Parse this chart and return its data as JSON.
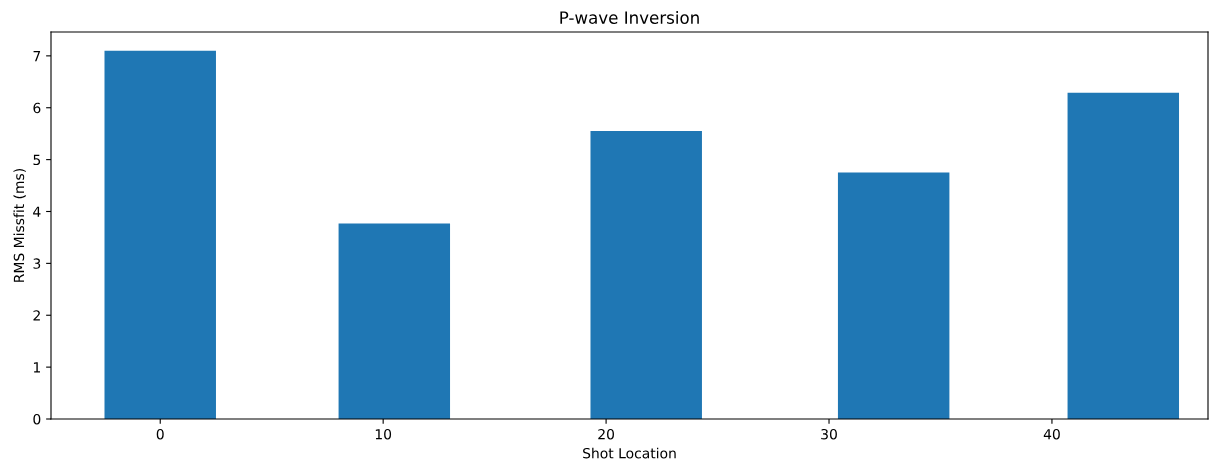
{
  "chart_data": {
    "type": "bar",
    "title": "P-wave Inversion",
    "xlabel": "Shot Location",
    "ylabel": "RMS Missfit (ms)",
    "x": [
      0,
      10.5,
      21.8,
      32.9,
      43.2
    ],
    "values": [
      7.1,
      3.77,
      5.55,
      4.75,
      6.29
    ],
    "color": "#1f77b4",
    "xlim": [
      -4.9,
      47.0
    ],
    "xticks": [
      0,
      10,
      20,
      30,
      40
    ],
    "ylim": [
      0,
      7.46
    ],
    "yticks": [
      0,
      1,
      2,
      3,
      4,
      5,
      6,
      7
    ],
    "grid": false
  }
}
